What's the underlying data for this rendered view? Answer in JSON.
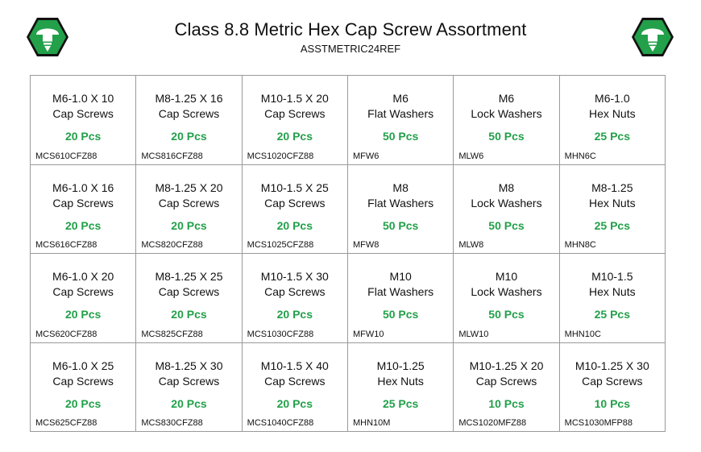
{
  "header": {
    "title": "Class 8.8 Metric Hex Cap Screw Assortment",
    "subtitle": "ASSTMETRIC24REF"
  },
  "colors": {
    "logo": "#22a04a",
    "logo_dark": "#111111",
    "qty": "#22a04a",
    "grid": "#9a9a9a"
  },
  "icons": {
    "logo_left": "hex-screw-logo-icon",
    "logo_right": "hex-screw-logo-icon"
  },
  "cells": [
    {
      "line1": "M6-1.0 X 10",
      "line2": "Cap Screws",
      "qty": "20 Pcs",
      "code": "MCS610CFZ88"
    },
    {
      "line1": "M8-1.25 X 16",
      "line2": "Cap Screws",
      "qty": "20 Pcs",
      "code": "MCS816CFZ88"
    },
    {
      "line1": "M10-1.5 X 20",
      "line2": "Cap Screws",
      "qty": "20 Pcs",
      "code": "MCS1020CFZ88"
    },
    {
      "line1": "M6",
      "line2": "Flat Washers",
      "qty": "50 Pcs",
      "code": "MFW6"
    },
    {
      "line1": "M6",
      "line2": "Lock Washers",
      "qty": "50 Pcs",
      "code": "MLW6"
    },
    {
      "line1": "M6-1.0",
      "line2": "Hex Nuts",
      "qty": "25 Pcs",
      "code": "MHN6C"
    },
    {
      "line1": "M6-1.0 X 16",
      "line2": "Cap Screws",
      "qty": "20 Pcs",
      "code": "MCS616CFZ88"
    },
    {
      "line1": "M8-1.25 X 20",
      "line2": "Cap Screws",
      "qty": "20 Pcs",
      "code": "MCS820CFZ88"
    },
    {
      "line1": "M10-1.5 X 25",
      "line2": "Cap Screws",
      "qty": "20 Pcs",
      "code": "MCS1025CFZ88"
    },
    {
      "line1": "M8",
      "line2": "Flat Washers",
      "qty": "50 Pcs",
      "code": "MFW8"
    },
    {
      "line1": "M8",
      "line2": "Lock Washers",
      "qty": "50 Pcs",
      "code": "MLW8"
    },
    {
      "line1": "M8-1.25",
      "line2": "Hex Nuts",
      "qty": "25 Pcs",
      "code": "MHN8C"
    },
    {
      "line1": "M6-1.0 X 20",
      "line2": "Cap Screws",
      "qty": "20 Pcs",
      "code": "MCS620CFZ88"
    },
    {
      "line1": "M8-1.25 X 25",
      "line2": "Cap Screws",
      "qty": "20 Pcs",
      "code": "MCS825CFZ88"
    },
    {
      "line1": "M10-1.5 X 30",
      "line2": "Cap Screws",
      "qty": "20 Pcs",
      "code": "MCS1030CFZ88"
    },
    {
      "line1": "M10",
      "line2": "Flat Washers",
      "qty": "50 Pcs",
      "code": "MFW10"
    },
    {
      "line1": "M10",
      "line2": "Lock Washers",
      "qty": "50 Pcs",
      "code": "MLW10"
    },
    {
      "line1": "M10-1.5",
      "line2": "Hex Nuts",
      "qty": "25 Pcs",
      "code": "MHN10C"
    },
    {
      "line1": "M6-1.0 X 25",
      "line2": "Cap Screws",
      "qty": "20 Pcs",
      "code": "MCS625CFZ88"
    },
    {
      "line1": "M8-1.25 X 30",
      "line2": "Cap Screws",
      "qty": "20 Pcs",
      "code": "MCS830CFZ88"
    },
    {
      "line1": "M10-1.5 X 40",
      "line2": "Cap Screws",
      "qty": "20 Pcs",
      "code": "MCS1040CFZ88"
    },
    {
      "line1": "M10-1.25",
      "line2": "Hex Nuts",
      "qty": "25 Pcs",
      "code": "MHN10M"
    },
    {
      "line1": "M10-1.25 X 20",
      "line2": "Cap Screws",
      "qty": "10 Pcs",
      "code": "MCS1020MFZ88"
    },
    {
      "line1": "M10-1.25 X 30",
      "line2": "Cap Screws",
      "qty": "10 Pcs",
      "code": "MCS1030MFP88"
    }
  ]
}
